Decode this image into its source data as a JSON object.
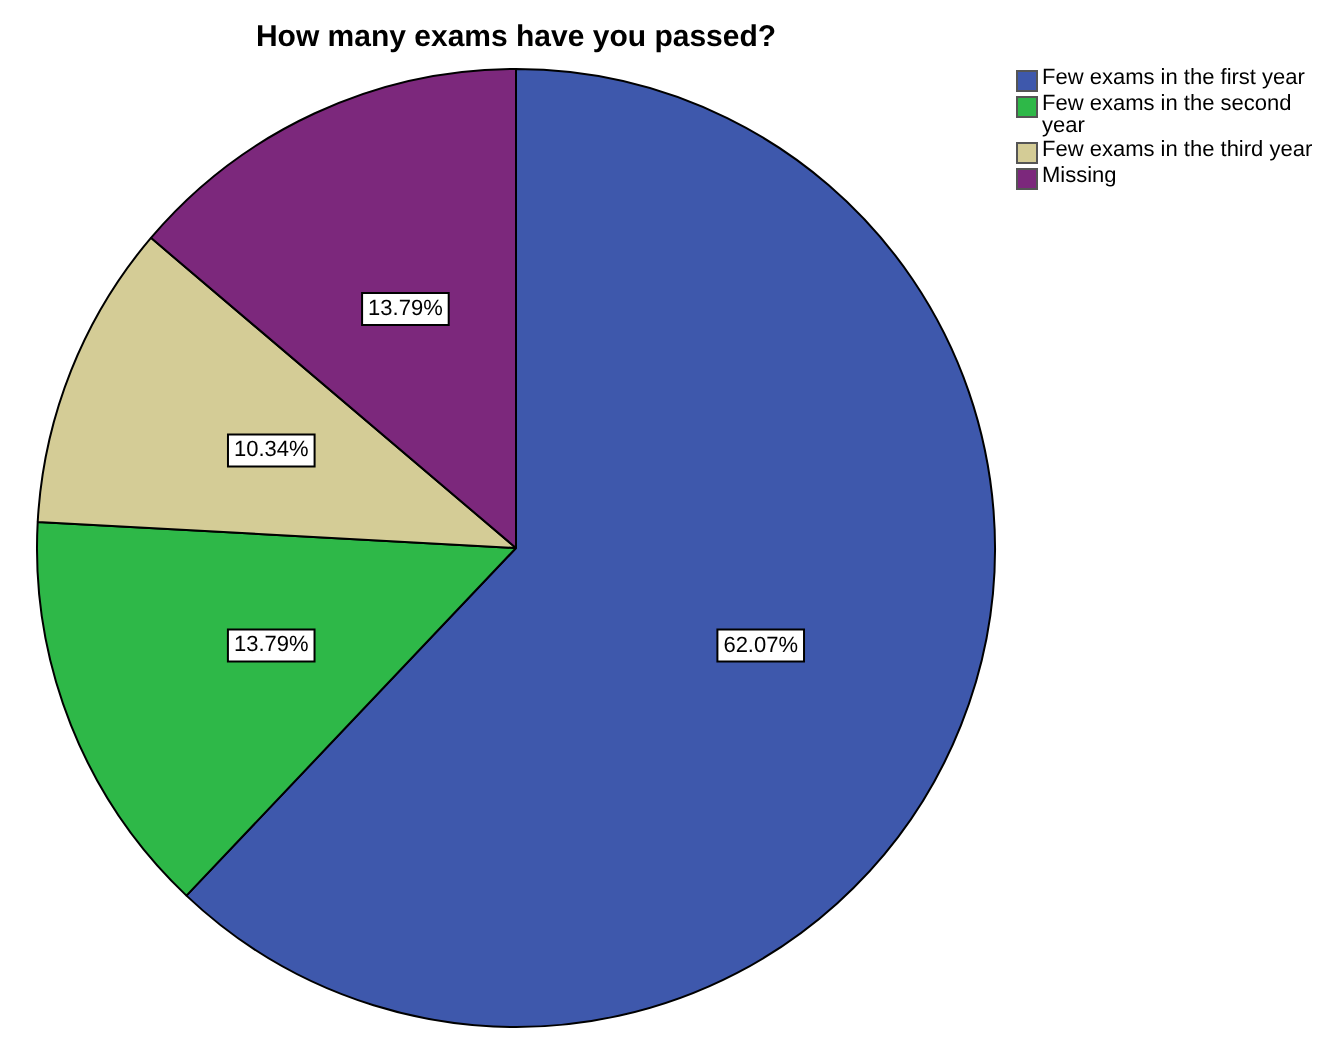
{
  "chart_data": {
    "type": "pie",
    "title": "How many exams have you passed?",
    "categories": [
      "Few exams in the first year",
      "Few exams in the second year",
      "Few exams in the third year",
      "Missing"
    ],
    "values": [
      62.07,
      13.79,
      10.34,
      13.79
    ],
    "colors": [
      "#3e58ac",
      "#2eb848",
      "#d4cc96",
      "#7c287c"
    ],
    "value_labels": [
      "62.07%",
      "13.79%",
      "10.34%",
      "13.79%"
    ],
    "legend": "top right"
  }
}
